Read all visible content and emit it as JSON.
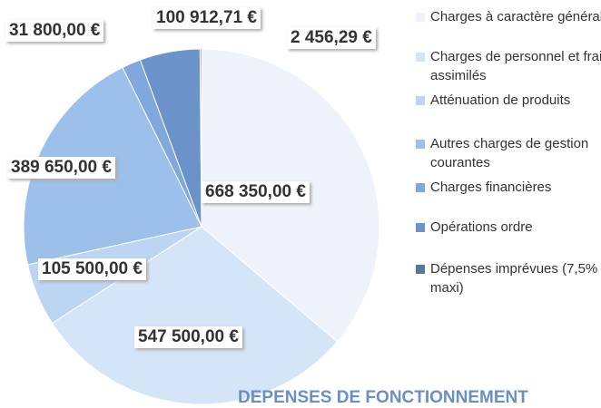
{
  "chart_data": {
    "type": "pie",
    "title": "DEPENSES DE FONCTIONNEMENT",
    "categories": [
      "Charges à caractère général",
      "Charges de personnel et frais assimilés",
      "Atténuation de produits",
      "Autres charges de gestion courantes",
      "Charges financières",
      "Opérations ordre",
      "Dépenses imprévues (7,5% maxi)"
    ],
    "values": [
      668350,
      547500,
      105500,
      389650,
      31800,
      100912.71,
      2456.29
    ],
    "value_labels": [
      "668 350,00 €",
      "547 500,00 €",
      "105 500,00 €",
      "389 650,00 €",
      "31 800,00 €",
      "100 912,71 €",
      "2 456,29 €"
    ],
    "colors": [
      "#eef3fb",
      "#d5e5f8",
      "#bcd5f2",
      "#9cc0ea",
      "#80a8dc",
      "#6c93c9",
      "#55779f"
    ],
    "legend": "right"
  }
}
